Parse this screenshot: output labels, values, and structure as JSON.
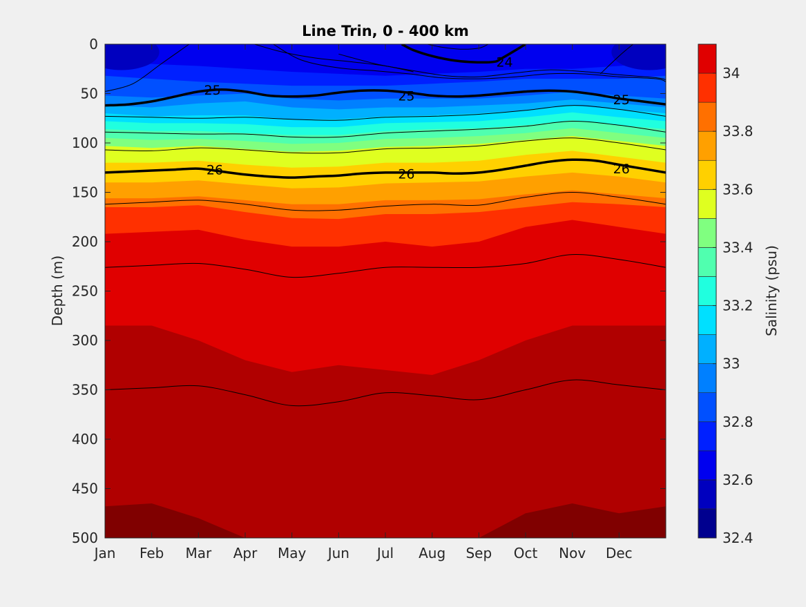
{
  "chart_data": {
    "type": "contourf",
    "title": "Line Trin, 0 - 400 km",
    "xlabel": "",
    "ylabel": "Depth (m)",
    "x_ticks": [
      "Jan",
      "Feb",
      "Mar",
      "Apr",
      "May",
      "Jun",
      "Jul",
      "Aug",
      "Sep",
      "Oct",
      "Nov",
      "Dec"
    ],
    "xlim": [
      "Jan",
      "Dec (end)"
    ],
    "y_ticks": [
      0,
      50,
      100,
      150,
      200,
      250,
      300,
      350,
      400,
      450,
      500
    ],
    "ylim": [
      0,
      500
    ],
    "y_reversed": true,
    "colorbar": {
      "label": "Salinity (psu)",
      "tick_labels": [
        "32.4",
        "32.6",
        "32.8",
        "33",
        "33.2",
        "33.4",
        "33.6",
        "33.8",
        "34"
      ],
      "tick_values": [
        32.4,
        32.6,
        32.8,
        33.0,
        33.2,
        33.4,
        33.6,
        33.8,
        34.0
      ],
      "range": [
        32.4,
        34.1
      ],
      "levels": [
        {
          "from": 32.4,
          "to": 32.5,
          "color": "#00008f"
        },
        {
          "from": 32.5,
          "to": 32.6,
          "color": "#0000bf"
        },
        {
          "from": 32.6,
          "to": 32.7,
          "color": "#0000ef"
        },
        {
          "from": 32.7,
          "to": 32.8,
          "color": "#0020ff"
        },
        {
          "from": 32.8,
          "to": 32.9,
          "color": "#0050ff"
        },
        {
          "from": 32.9,
          "to": 33.0,
          "color": "#0080ff"
        },
        {
          "from": 33.0,
          "to": 33.1,
          "color": "#00b0ff"
        },
        {
          "from": 33.1,
          "to": 33.2,
          "color": "#00e0ff"
        },
        {
          "from": 33.2,
          "to": 33.3,
          "color": "#20ffdf"
        },
        {
          "from": 33.3,
          "to": 33.4,
          "color": "#50ffaf"
        },
        {
          "from": 33.4,
          "to": 33.5,
          "color": "#80ff80"
        },
        {
          "from": 33.5,
          "to": 33.6,
          "color": "#dfff20"
        },
        {
          "from": 33.6,
          "to": 33.7,
          "color": "#ffd000"
        },
        {
          "from": 33.7,
          "to": 33.8,
          "color": "#ffa000"
        },
        {
          "from": 33.8,
          "to": 33.9,
          "color": "#ff7000"
        },
        {
          "from": 33.9,
          "to": 34.0,
          "color": "#ff3000"
        },
        {
          "from": 34.0,
          "to": 34.1,
          "color": "#e00000"
        },
        {
          "from": 34.1,
          "to": 34.2,
          "color": "#b00000"
        },
        {
          "from": 34.2,
          "to": 34.3,
          "color": "#800000"
        }
      ]
    },
    "salinity_isolines_depth_m": [
      {
        "level": 32.6,
        "x": [
          0,
          1,
          2,
          3,
          4,
          5,
          6,
          7,
          8,
          9,
          10,
          11,
          12
        ],
        "depth": [
          8,
          8,
          8,
          8,
          8,
          8,
          8,
          8,
          8,
          8,
          8,
          8,
          8
        ]
      },
      {
        "level": 32.7,
        "x": [
          0,
          1,
          2,
          3,
          4,
          5,
          6,
          7,
          8,
          9,
          10,
          11,
          12
        ],
        "depth": [
          18,
          20,
          22,
          25,
          28,
          30,
          32,
          30,
          28,
          25,
          25,
          22,
          18
        ]
      },
      {
        "level": 32.8,
        "x": [
          0,
          1,
          2,
          3,
          4,
          5,
          6,
          7,
          8,
          9,
          10,
          11,
          12
        ],
        "depth": [
          32,
          35,
          38,
          40,
          42,
          42,
          42,
          40,
          38,
          35,
          35,
          35,
          32
        ]
      },
      {
        "level": 32.9,
        "x": [
          0,
          1,
          2,
          3,
          4,
          5,
          6,
          7,
          8,
          9,
          10,
          11,
          12
        ],
        "depth": [
          52,
          54,
          52,
          50,
          55,
          57,
          55,
          55,
          55,
          52,
          48,
          52,
          55
        ]
      },
      {
        "level": 33.0,
        "x": [
          0,
          1,
          2,
          3,
          4,
          5,
          6,
          7,
          8,
          9,
          10,
          11,
          12
        ],
        "depth": [
          62,
          64,
          60,
          58,
          64,
          66,
          64,
          64,
          62,
          60,
          56,
          60,
          64
        ]
      },
      {
        "level": 33.1,
        "x": [
          0,
          1,
          2,
          3,
          4,
          5,
          6,
          7,
          8,
          9,
          10,
          11,
          12
        ],
        "depth": [
          70,
          73,
          72,
          72,
          76,
          76,
          73,
          72,
          70,
          67,
          62,
          66,
          70
        ]
      },
      {
        "level": 33.2,
        "x": [
          0,
          1,
          2,
          3,
          4,
          5,
          6,
          7,
          8,
          9,
          10,
          11,
          12
        ],
        "depth": [
          78,
          80,
          80,
          81,
          84,
          84,
          80,
          79,
          78,
          74,
          69,
          74,
          78
        ]
      },
      {
        "level": 33.3,
        "x": [
          0,
          1,
          2,
          3,
          4,
          5,
          6,
          7,
          8,
          9,
          10,
          11,
          12
        ],
        "depth": [
          86,
          88,
          88,
          90,
          92,
          92,
          88,
          86,
          85,
          82,
          77,
          82,
          86
        ]
      },
      {
        "level": 33.4,
        "x": [
          0,
          1,
          2,
          3,
          4,
          5,
          6,
          7,
          8,
          9,
          10,
          11,
          12
        ],
        "depth": [
          95,
          97,
          96,
          98,
          101,
          100,
          96,
          95,
          93,
          90,
          85,
          90,
          95
        ]
      },
      {
        "level": 33.5,
        "x": [
          0,
          1,
          2,
          3,
          4,
          5,
          6,
          7,
          8,
          9,
          10,
          11,
          12
        ],
        "depth": [
          103,
          105,
          103,
          106,
          109,
          108,
          104,
          103,
          101,
          97,
          93,
          98,
          103
        ]
      },
      {
        "level": 33.6,
        "x": [
          0,
          1,
          2,
          3,
          4,
          5,
          6,
          7,
          8,
          9,
          10,
          11,
          12
        ],
        "depth": [
          120,
          120,
          118,
          122,
          125,
          124,
          120,
          120,
          118,
          112,
          108,
          114,
          120
        ]
      },
      {
        "level": 33.7,
        "x": [
          0,
          1,
          2,
          3,
          4,
          5,
          6,
          7,
          8,
          9,
          10,
          11,
          12
        ],
        "depth": [
          140,
          140,
          138,
          142,
          146,
          145,
          141,
          140,
          139,
          134,
          130,
          134,
          140
        ]
      },
      {
        "level": 33.8,
        "x": [
          0,
          1,
          2,
          3,
          4,
          5,
          6,
          7,
          8,
          9,
          10,
          11,
          12
        ],
        "depth": [
          156,
          156,
          154,
          158,
          162,
          162,
          158,
          158,
          157,
          152,
          148,
          152,
          156
        ]
      },
      {
        "level": 33.9,
        "x": [
          0,
          1,
          2,
          3,
          4,
          5,
          6,
          7,
          8,
          9,
          10,
          11,
          12
        ],
        "depth": [
          165,
          165,
          163,
          170,
          176,
          177,
          172,
          172,
          170,
          165,
          160,
          162,
          165
        ]
      },
      {
        "level": 34.0,
        "x": [
          0,
          1,
          2,
          3,
          4,
          5,
          6,
          7,
          8,
          9,
          10,
          11,
          12
        ],
        "depth": [
          192,
          190,
          188,
          198,
          205,
          205,
          200,
          205,
          200,
          185,
          178,
          185,
          192
        ]
      },
      {
        "level": 34.1,
        "x": [
          0,
          1,
          2,
          3,
          4,
          5,
          6,
          7,
          8,
          9,
          10,
          11,
          12
        ],
        "depth": [
          285,
          285,
          300,
          320,
          332,
          325,
          330,
          335,
          320,
          300,
          285,
          285,
          285
        ]
      },
      {
        "level": 34.2,
        "x": [
          0,
          1,
          2,
          3,
          4,
          5,
          6,
          7,
          8,
          9,
          10,
          11,
          12
        ],
        "depth": [
          468,
          465,
          480,
          500,
          500,
          500,
          500,
          500,
          500,
          475,
          465,
          475,
          468
        ]
      }
    ],
    "density_contours": [
      {
        "label": "24",
        "bold": true,
        "x": [
          6.35,
          6.6,
          7,
          7.4,
          7.8,
          8.3,
          8.5,
          9.0
        ],
        "depth": [
          0,
          6,
          12,
          16,
          18,
          18,
          14,
          0
        ]
      },
      {
        "label": "24",
        "bold": false,
        "x": [
          6.9,
          7.2,
          7.6,
          8.0,
          8.2
        ],
        "depth": [
          0,
          3,
          5,
          4,
          0
        ]
      },
      {
        "label": "25",
        "bold": true,
        "x": [
          0,
          0.5,
          1,
          1.5,
          2,
          2.5,
          3,
          3.5,
          4,
          4.5,
          5,
          5.5,
          6,
          6.5,
          7,
          7.5,
          8,
          8.5,
          9,
          9.5,
          10,
          10.5,
          11,
          11.5,
          12
        ],
        "depth": [
          62,
          61,
          58,
          53,
          48,
          46,
          48,
          52,
          53,
          52,
          49,
          47,
          47,
          49,
          52,
          53,
          52,
          50,
          48,
          47,
          48,
          51,
          55,
          58,
          61
        ]
      },
      {
        "label": "26",
        "bold": true,
        "x": [
          0,
          0.5,
          1,
          1.5,
          2,
          2.5,
          3,
          3.5,
          4,
          4.5,
          5,
          5.5,
          6,
          6.5,
          7,
          7.5,
          8,
          8.5,
          9,
          9.5,
          10,
          10.5,
          11,
          11.5,
          12
        ],
        "depth": [
          130,
          129,
          128,
          127,
          126,
          129,
          132,
          134,
          135,
          134,
          133,
          131,
          130,
          130,
          130,
          131,
          130,
          127,
          123,
          119,
          117,
          118,
          122,
          126,
          130
        ]
      },
      {
        "label": "",
        "bold": false,
        "x": [
          0,
          1,
          2,
          3,
          4,
          5,
          6,
          7,
          8,
          9,
          10,
          11,
          12
        ],
        "depth": [
          73,
          74,
          75,
          74,
          76,
          77,
          74,
          73,
          71,
          67,
          62,
          66,
          73
        ]
      },
      {
        "label": "",
        "bold": false,
        "x": [
          0,
          1,
          2,
          3,
          4,
          5,
          6,
          7,
          8,
          9,
          10,
          11,
          12
        ],
        "depth": [
          89,
          90,
          91,
          91,
          94,
          94,
          90,
          88,
          86,
          83,
          78,
          82,
          89
        ]
      },
      {
        "label": "",
        "bold": false,
        "x": [
          0,
          1,
          2,
          3,
          4,
          5,
          6,
          7,
          8,
          9,
          10,
          11,
          12
        ],
        "depth": [
          107,
          108,
          105,
          107,
          110,
          110,
          106,
          105,
          103,
          98,
          95,
          100,
          107
        ]
      },
      {
        "label": "",
        "bold": false,
        "x": [
          0,
          1,
          2,
          3,
          4,
          5,
          6,
          7,
          8,
          9,
          10,
          11,
          12
        ],
        "depth": [
          162,
          160,
          158,
          162,
          168,
          168,
          164,
          162,
          163,
          155,
          150,
          155,
          162
        ]
      },
      {
        "label": "",
        "bold": false,
        "x": [
          0,
          1,
          2,
          3,
          4,
          5,
          6,
          7,
          8,
          9,
          10,
          11,
          12
        ],
        "depth": [
          226,
          224,
          222,
          228,
          236,
          232,
          226,
          226,
          226,
          222,
          213,
          218,
          226
        ]
      },
      {
        "label": "",
        "bold": false,
        "x": [
          0,
          1,
          2,
          3,
          4,
          5,
          6,
          7,
          8,
          9,
          10,
          11,
          12
        ],
        "depth": [
          350,
          348,
          346,
          355,
          366,
          362,
          353,
          356,
          360,
          350,
          340,
          345,
          350
        ]
      },
      {
        "label": "",
        "bold": false,
        "x": [
          0,
          0.6,
          1.2,
          1.8
        ],
        "depth": [
          48,
          40,
          20,
          0
        ]
      },
      {
        "label": "",
        "bold": false,
        "x": [
          3.2,
          3.8,
          4.5,
          5.3,
          6.0,
          6.6
        ],
        "depth": [
          0,
          8,
          14,
          18,
          22,
          28
        ]
      },
      {
        "label": "",
        "bold": false,
        "x": [
          3.6,
          4.2,
          5.0,
          5.8,
          6.5,
          7.2,
          8.0,
          8.8,
          9.5,
          10.2,
          11.0,
          11.8,
          12
        ],
        "depth": [
          0,
          16,
          24,
          27,
          30,
          34,
          35,
          33,
          30,
          30,
          33,
          35,
          38
        ]
      },
      {
        "label": "",
        "bold": false,
        "x": [
          5.0,
          5.8,
          6.5,
          7.3,
          8.0,
          8.8,
          9.5,
          10.3,
          11.0,
          11.8,
          12
        ],
        "depth": [
          10,
          20,
          26,
          32,
          33,
          29,
          26,
          28,
          31,
          34,
          36
        ]
      },
      {
        "label": "",
        "bold": false,
        "x": [
          10.6,
          11.0,
          11.3
        ],
        "depth": [
          30,
          12,
          0
        ]
      }
    ]
  }
}
